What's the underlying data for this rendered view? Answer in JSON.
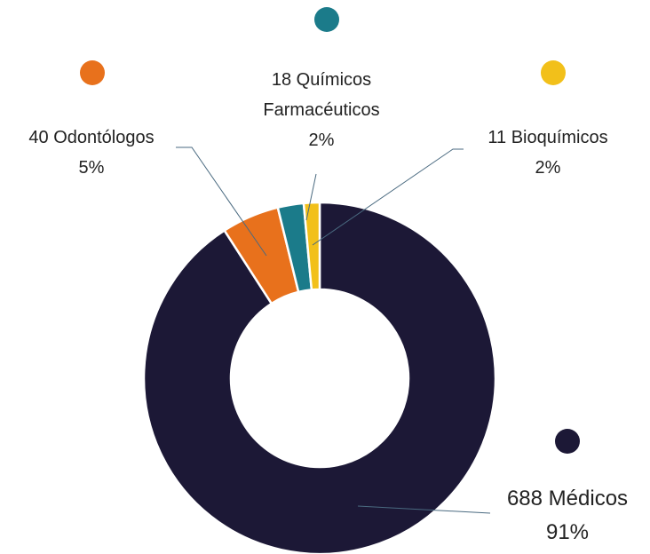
{
  "chart_data": {
    "type": "donut",
    "categories": [
      "Médicos",
      "Odontólogos",
      "Químicos Farmacéuticos",
      "Bioquímicos"
    ],
    "values": [
      688,
      40,
      18,
      11
    ],
    "percent_labels": [
      "91%",
      "5%",
      "2%",
      "2%"
    ],
    "colors": [
      "#1c1836",
      "#e8711c",
      "#1b7b8a",
      "#f2c01a"
    ]
  }
}
